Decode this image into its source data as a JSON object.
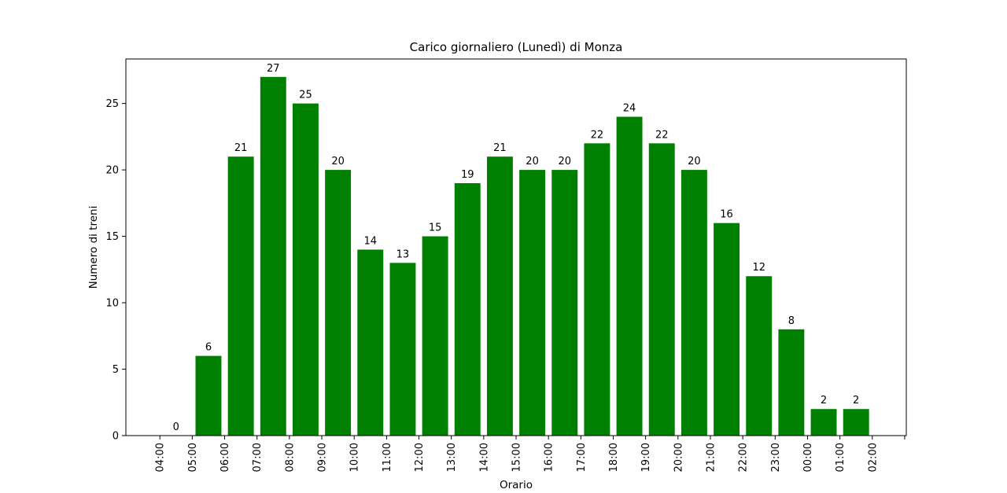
{
  "chart_data": {
    "type": "bar",
    "title": "Carico giornaliero (Lunedì) di Monza",
    "xlabel": "Orario",
    "ylabel": "Numero di treni",
    "categories": [
      "04:00",
      "05:00",
      "06:00",
      "07:00",
      "08:00",
      "09:00",
      "10:00",
      "11:00",
      "12:00",
      "13:00",
      "14:00",
      "15:00",
      "16:00",
      "17:00",
      "18:00",
      "19:00",
      "20:00",
      "21:00",
      "22:00",
      "23:00",
      "00:00",
      "01:00",
      "02:00"
    ],
    "bars": [
      {
        "x": 0.5,
        "value": 0
      },
      {
        "x": 1.5,
        "value": 6
      },
      {
        "x": 2.5,
        "value": 21
      },
      {
        "x": 3.5,
        "value": 27
      },
      {
        "x": 4.5,
        "value": 25
      },
      {
        "x": 5.5,
        "value": 20
      },
      {
        "x": 6.5,
        "value": 14
      },
      {
        "x": 7.5,
        "value": 13
      },
      {
        "x": 8.5,
        "value": 15
      },
      {
        "x": 9.5,
        "value": 19
      },
      {
        "x": 10.5,
        "value": 21
      },
      {
        "x": 11.5,
        "value": 20
      },
      {
        "x": 12.5,
        "value": 20
      },
      {
        "x": 13.5,
        "value": 22
      },
      {
        "x": 14.5,
        "value": 24
      },
      {
        "x": 15.5,
        "value": 22
      },
      {
        "x": 16.5,
        "value": 20
      },
      {
        "x": 17.5,
        "value": 16
      },
      {
        "x": 18.5,
        "value": 12
      },
      {
        "x": 19.5,
        "value": 8
      },
      {
        "x": 20.5,
        "value": 2
      },
      {
        "x": 21.5,
        "value": 2
      }
    ],
    "yticks": [
      0,
      5,
      10,
      15,
      20,
      25
    ],
    "ylim": [
      0,
      28.35
    ],
    "xlim": [
      -1.05,
      23.05
    ],
    "bar_color": "#008000",
    "grid": false,
    "legend": "none"
  }
}
